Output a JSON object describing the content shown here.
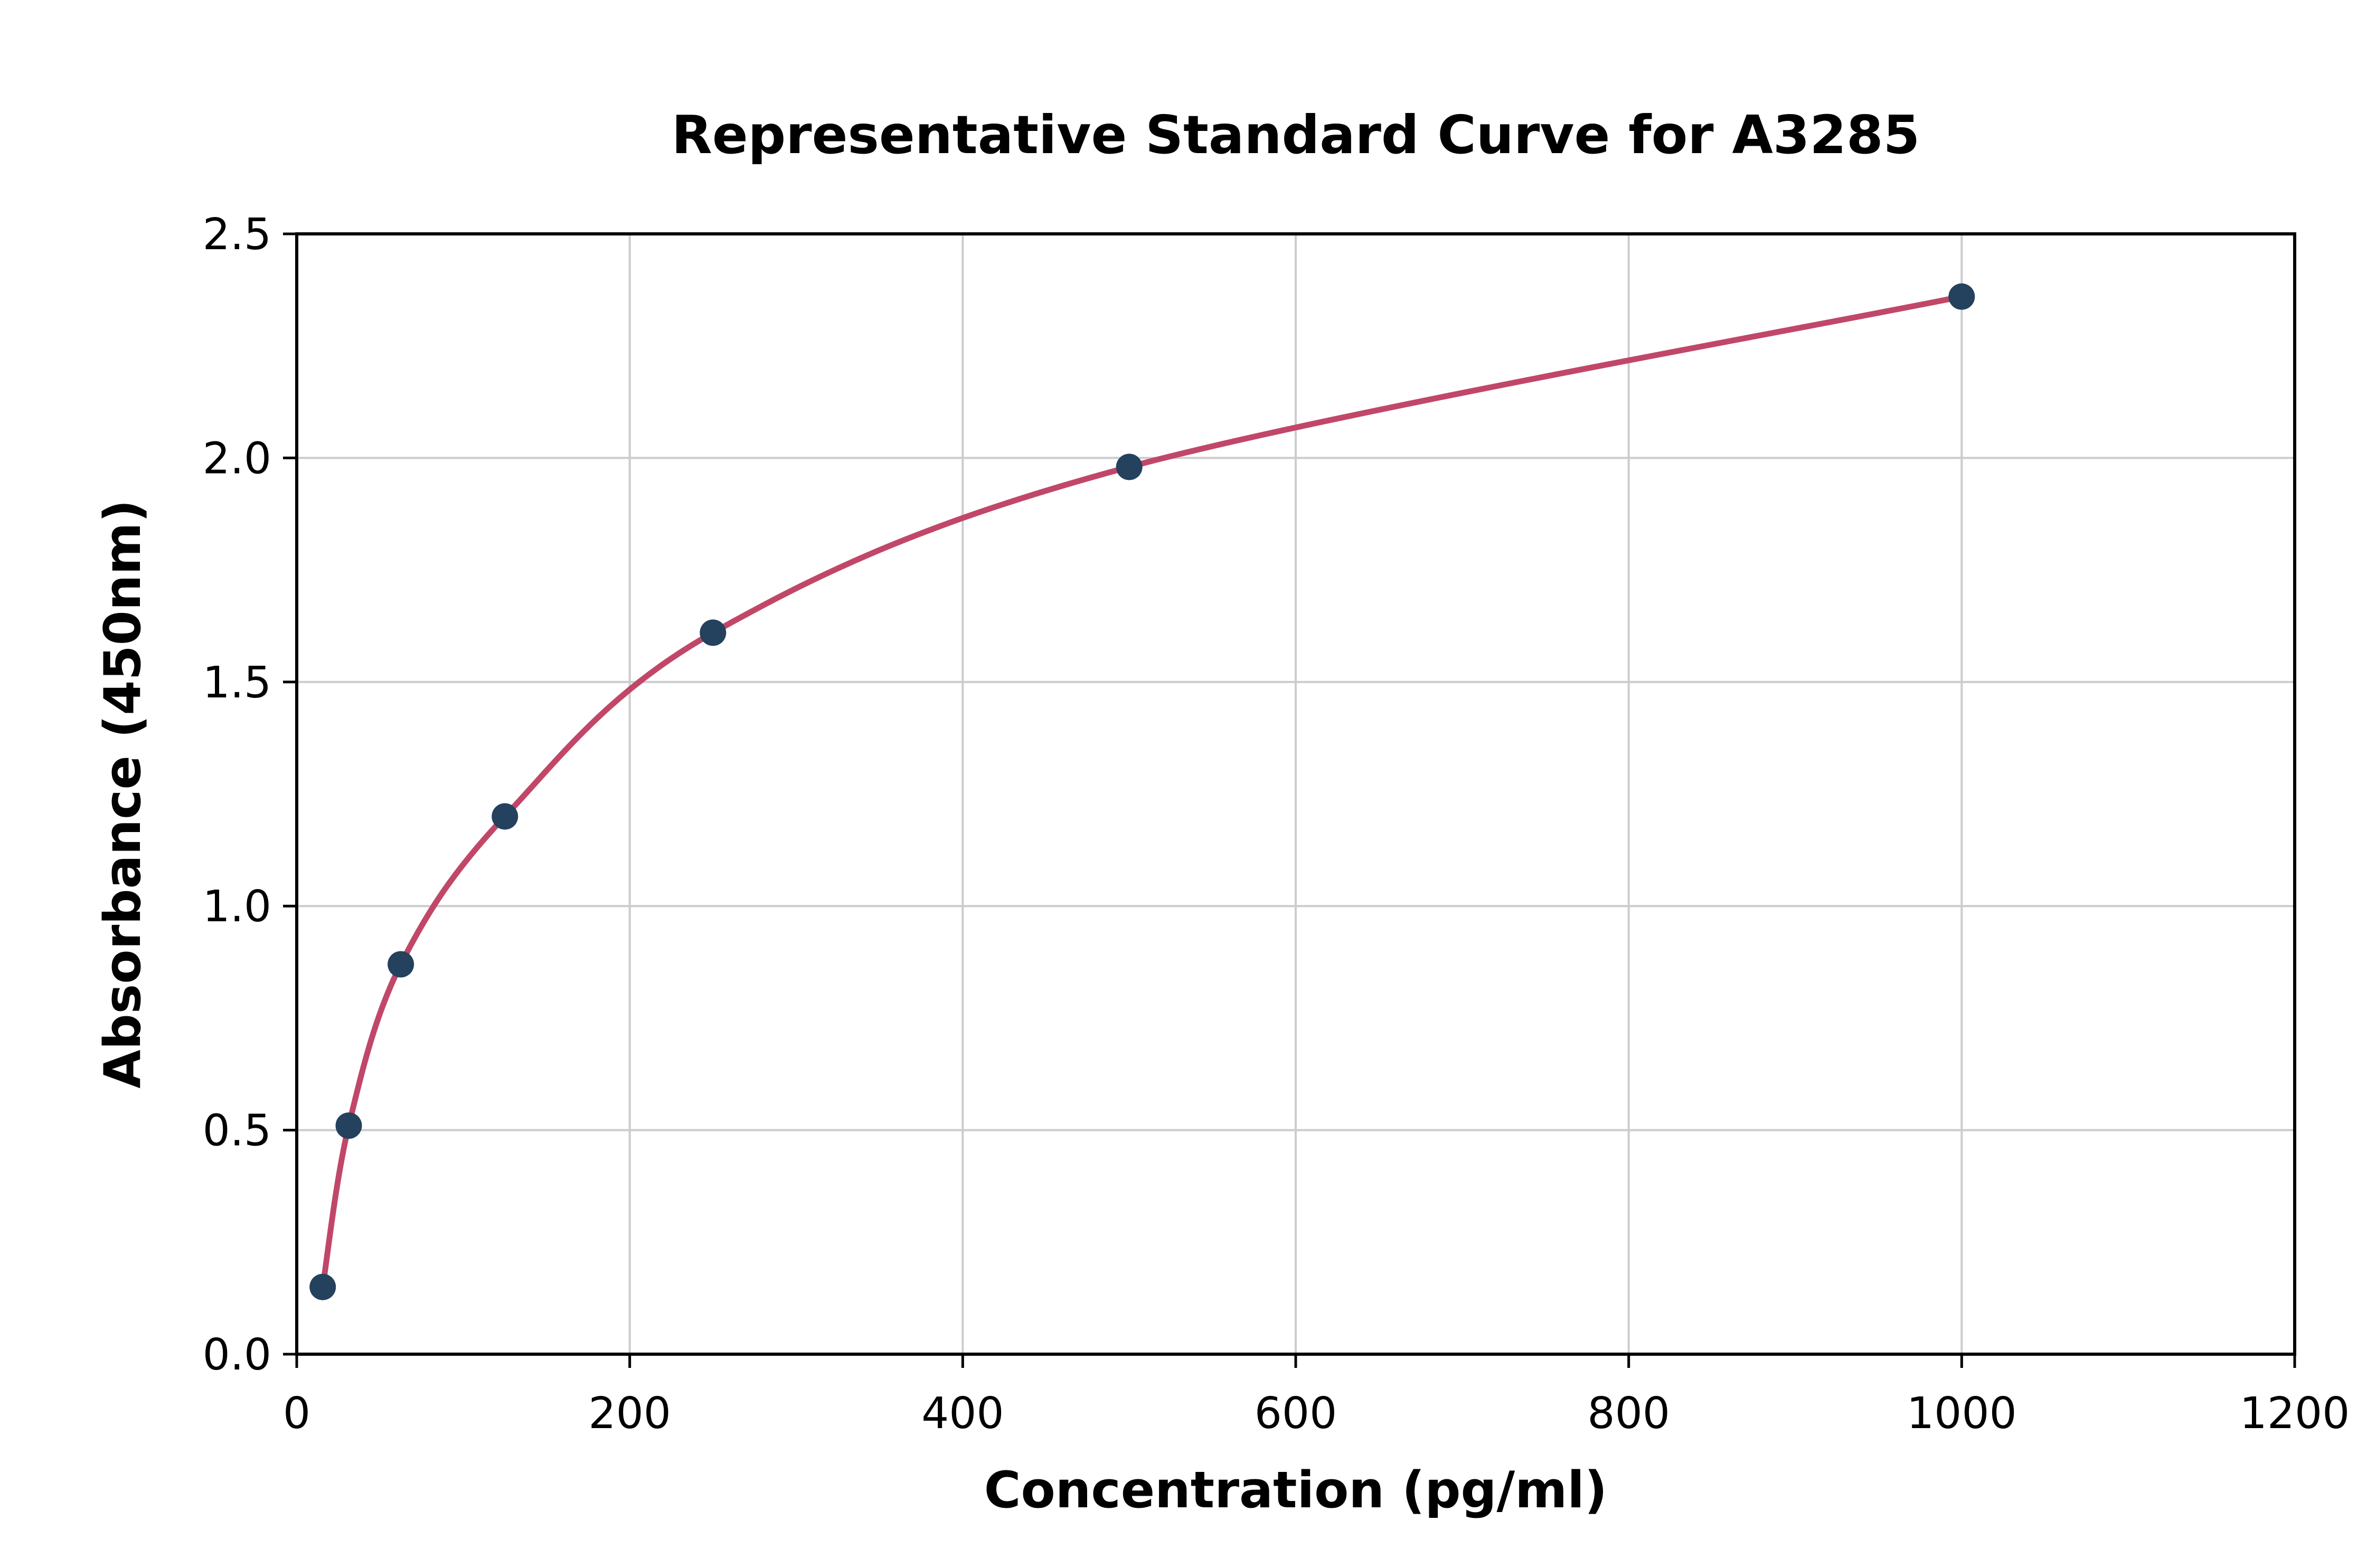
{
  "figure": {
    "background": "#ffffff"
  },
  "chart_data": {
    "type": "scatter",
    "curve_fit": true,
    "title": "Representative Standard Curve for A3285",
    "xlabel": "Concentration (pg/ml)",
    "ylabel": "Absorbance (450nm)",
    "x": [
      15.6,
      31.25,
      62.5,
      125,
      250,
      500,
      1000
    ],
    "y": [
      0.15,
      0.51,
      0.87,
      1.2,
      1.61,
      1.98,
      2.36
    ],
    "xlim": [
      0,
      1200
    ],
    "ylim": [
      0,
      2.5
    ],
    "xticks": [
      0,
      200,
      400,
      600,
      800,
      1000,
      1200
    ],
    "xtick_labels": [
      "0",
      "200",
      "400",
      "600",
      "800",
      "1000",
      "1200"
    ],
    "yticks": [
      0,
      0.5,
      1.0,
      1.5,
      2.0,
      2.5
    ],
    "ytick_labels": [
      "0.0",
      "0.5",
      "1.0",
      "1.5",
      "2.0",
      "2.5"
    ],
    "grid": true,
    "legend": false,
    "curve_color": "#c14769",
    "point_color": "#24415e",
    "grid_color": "#cccccc",
    "spine_color": "#000000"
  }
}
